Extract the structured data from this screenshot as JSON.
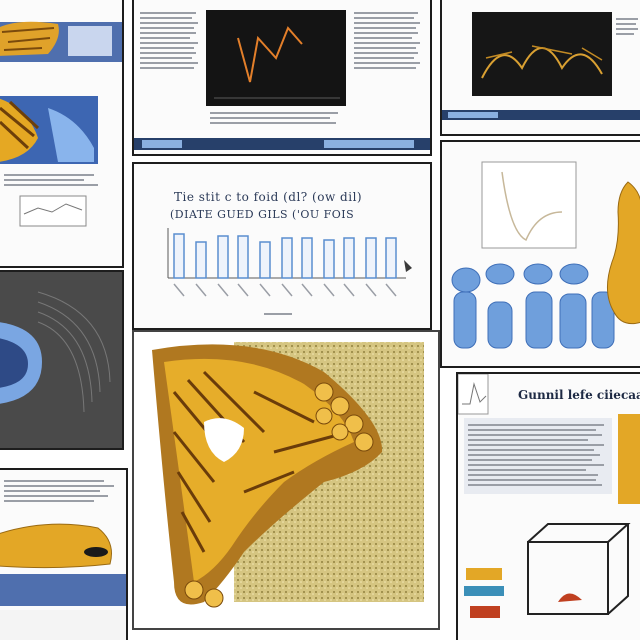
{
  "chart_panel": {
    "title_line_1": "Tie stit c to foid (dl? (ow dil)",
    "title_line_2": "(DIATE GUED GILS ('OU FOIS"
  },
  "right_lower_panel": {
    "heading": "Gunnil lefe ciiecaal"
  },
  "colors": {
    "frame": "#1d1d1d",
    "blue_render": "#6f9fdc",
    "gold_render": "#e3a726",
    "dark_plot": "#141414",
    "chart_bar_outline": "#5a8ed0"
  },
  "icons": [
    "bar-chart-icon",
    "line-plot-icon",
    "gold-mesh-render-icon",
    "blue-mesh-render-icon"
  ]
}
